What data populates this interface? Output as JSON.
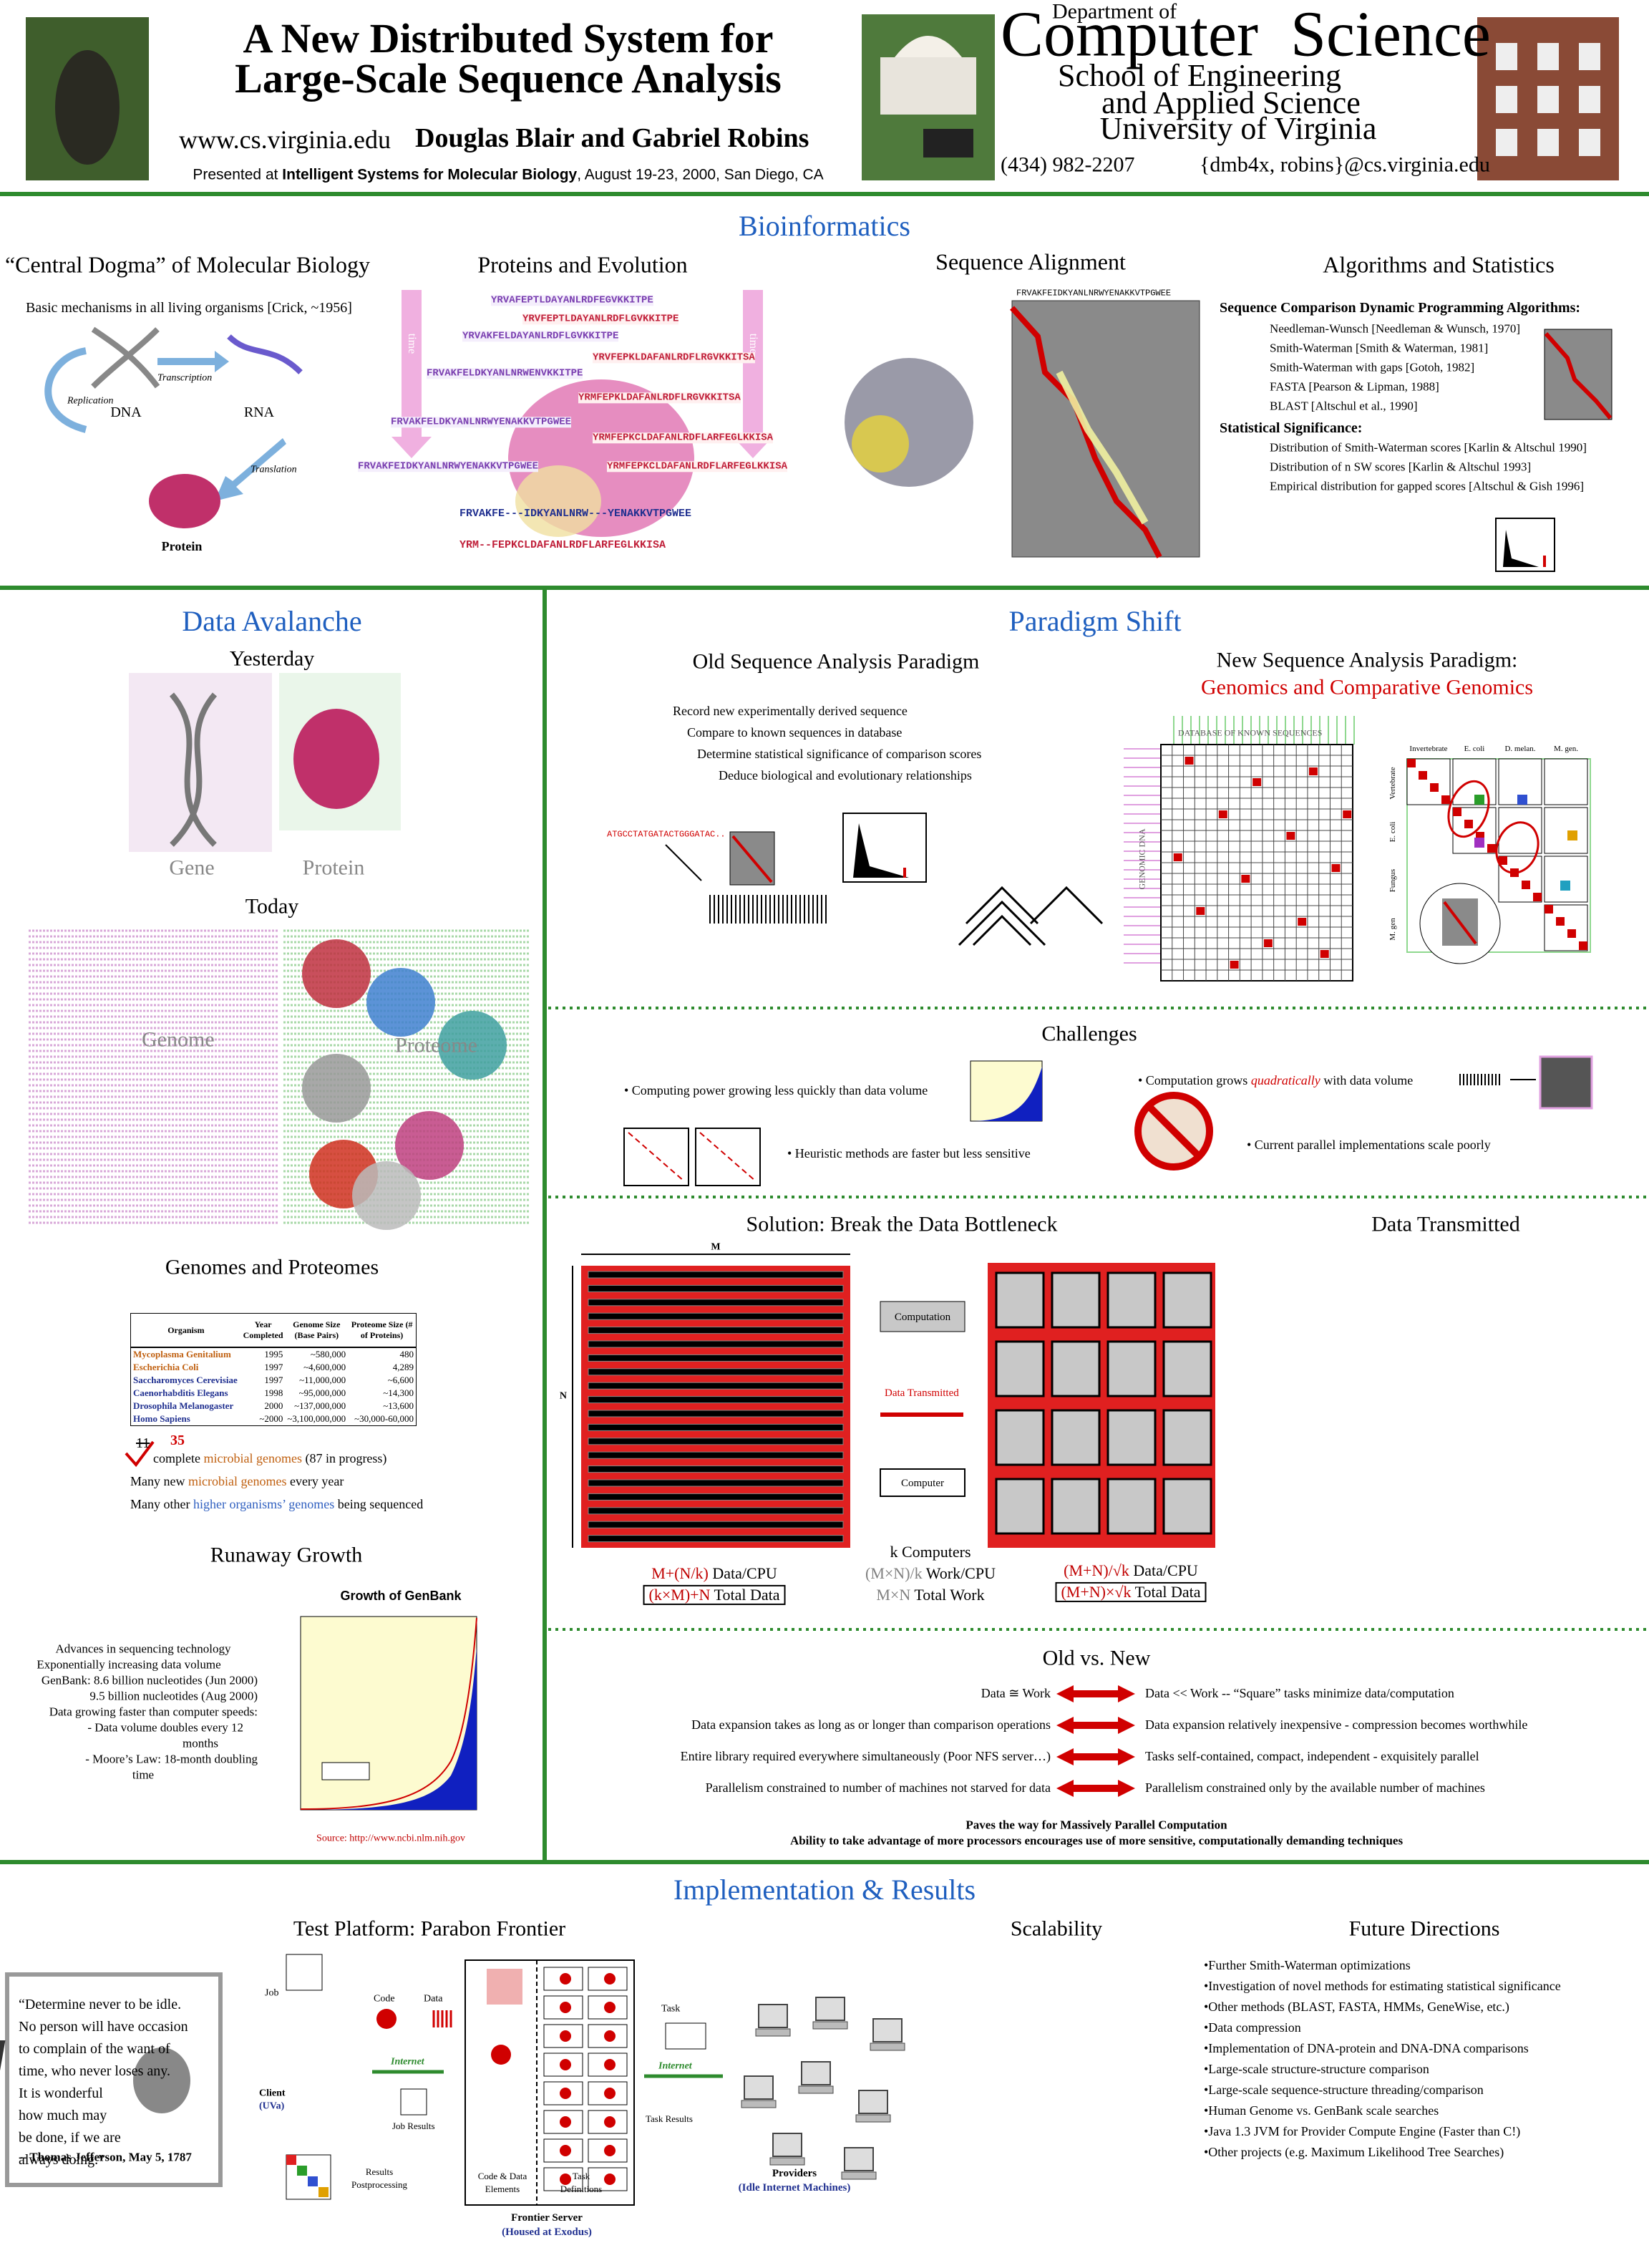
{
  "header": {
    "title": [
      "A New Distributed System for",
      "Large-Scale Sequence Analysis"
    ],
    "url": "www.cs.virginia.edu",
    "authors": "Douglas Blair and Gabriel Robins",
    "presented": {
      "prefix": "Presented at ",
      "venue": "Intelligent Systems for Molecular Biology",
      "suffix": ", August 19-23, 2000, San Diego, CA"
    },
    "department_of": "Department of",
    "department": "Computer  Science",
    "school": [
      "School of Engineering",
      "and Applied Science",
      "University of Virginia"
    ],
    "phone": "(434) 982-2207",
    "email": "{dmb4x, robins}@cs.virginia.edu"
  },
  "bioinformatics": {
    "heading": "Bioinformatics",
    "dogma": {
      "title": "“Central Dogma” of Molecular Biology",
      "subtitle": "Basic mechanisms in all living organisms [Crick, ~1956]",
      "dna": "DNA",
      "rna": "RNA",
      "protein": "Protein",
      "replication": "Replication",
      "transcription": "Transcription",
      "translation": "Translation"
    },
    "evolution": {
      "title": "Proteins and Evolution",
      "time": "time",
      "sequences": [
        "YRVAFEPTLDAYANLRDFEGVKKITPE",
        "YRVFEPTLDAYANLRDFLGVKKITPE",
        "YRVAKFELDAYANLRDFLGVKKITPE",
        "YRVFEPKLDAFANLRDFLRGVKKITSA",
        "FRVAKFELDKYANLNRWENVKKITPE",
        "YRMFEPKLDAFANLRDFLRGVKKITSA",
        "FRVAKFELDKYANLNRWYENAKKVTPGWEE",
        "YRMFEPKCLDAFANLRDFLARFEGLKKISA",
        "FRVAKFEIDKYANLNRWYENAKKVTPGWEE",
        "YRMFEPKCLDAFANLRDFLARFEGLKKISA"
      ],
      "alignment": [
        "FRVAKFE---IDKYANLNRW---YENAKKVTPGWEE",
        "YRM--FEPKCLDAFANLRDFLARFEGLKKISA"
      ]
    },
    "alignment": {
      "title": "Sequence Alignment",
      "top_sequence": "FRVAKFEIDKYANLNRWYENAKKVTPGWEE"
    },
    "algorithms": {
      "title": "Algorithms and Statistics",
      "dp_heading": "Sequence Comparison Dynamic Programming Algorithms:",
      "dp_items": [
        "Needleman-Wunsch [Needleman & Wunsch, 1970]",
        "Smith-Waterman [Smith & Waterman, 1981]",
        "Smith-Waterman with gaps [Gotoh, 1982]",
        "FASTA [Pearson & Lipman, 1988]",
        "BLAST [Altschul et al., 1990]"
      ],
      "stat_heading": "Statistical Significance:",
      "stat_items": [
        "Distribution of Smith-Waterman scores [Karlin & Altschul 1990]",
        "Distribution of n SW scores [Karlin & Altschul 1993]",
        "Empirical distribution for gapped scores [Altschul & Gish 1996]"
      ]
    }
  },
  "avalanche": {
    "heading": "Data Avalanche",
    "yesterday": "Yesterday",
    "gene": "Gene",
    "protein": "Protein",
    "today": "Today",
    "genome": "Genome",
    "proteome": "Proteome",
    "genomes_title": "Genomes and Proteomes",
    "table": {
      "headers": [
        "Organism",
        "Year Completed",
        "Genome Size (Base Pairs)",
        "Proteome Size (# of Proteins)"
      ],
      "rows": [
        [
          "Mycoplasma Genitalium",
          "1995",
          "~580,000",
          "480"
        ],
        [
          "Escherichia Coli",
          "1997",
          "~4,600,000",
          "4,289"
        ],
        [
          "Saccharomyces Cerevisiae",
          "1997",
          "~11,000,000",
          "~6,600"
        ],
        [
          "Caenorhabditis Elegans",
          "1998",
          "~95,000,000",
          "~14,300"
        ],
        [
          "Drosophila Melanogaster",
          "2000",
          "~137,000,000",
          "~13,600"
        ],
        [
          "Homo Sapiens",
          "~2000",
          "~3,100,000,000",
          "~30,000-60,000"
        ]
      ]
    },
    "notes": {
      "struck": "11",
      "revised": "35",
      "line1": [
        " complete ",
        "microbial genomes",
        " (87 in progress)"
      ],
      "line2": [
        "Many new ",
        "microbial genomes",
        " every year"
      ],
      "line3": [
        "Many other ",
        "higher organisms’ genomes",
        " being sequenced"
      ]
    },
    "runaway_title": "Runaway Growth",
    "runaway_items": [
      "Advances in sequencing technology",
      "Exponentially increasing data volume",
      "GenBank: 8.6 billion nucleotides (Jun 2000)",
      "9.5 billion nucleotides (Aug 2000)",
      "Data growing faster than computer speeds:",
      "- Data volume doubles every 12",
      "months",
      "- Moore’s Law: 18-month doubling",
      "time"
    ],
    "chart_title": "Growth of GenBank",
    "chart_source": "Source: http://www.ncbi.nlm.nih.gov"
  },
  "paradigm": {
    "heading": "Paradigm Shift",
    "old_title": "Old Sequence Analysis Paradigm",
    "old_steps": [
      "Record new experimentally derived sequence",
      "Compare to known sequences in database",
      "Determine statistical significance of comparison scores",
      "Deduce biological and evolutionary relationships"
    ],
    "old_sequence": "ATGCCTATGATACTGGGATAC..",
    "new_title": "New Sequence Analysis Paradigm:",
    "new_subtitle": "Genomics and Comparative Genomics",
    "database_label": "DATABASE OF KNOWN SEQUENCES",
    "genomic_label": "GENOMIC DNA",
    "matrix_top": [
      "Invertebrate",
      "E. coli",
      "D. melan.",
      "M. gen."
    ],
    "matrix_side": [
      "Vertebrate",
      "E. coli",
      "Fungus",
      "M. gen"
    ]
  },
  "challenges": {
    "heading": "Challenges",
    "item1": "• Computing power growing less quickly than data volume",
    "item2": "• Heuristic methods are faster but less sensitive",
    "item3": {
      "before": "• Computation grows ",
      "emphasis": "quadratically",
      "after": " with data volume"
    },
    "item4": "• Current parallel implementations scale poorly"
  },
  "solution": {
    "heading": "Solution: Break the Data Bottleneck",
    "right_heading": "Data Transmitted",
    "m": "M",
    "n": "N",
    "legend": {
      "computation": "Computation",
      "transmitted": "Data Transmitted",
      "computer": "Computer"
    },
    "left": [
      [
        {
          "text": "M+(N/k)",
          "color": "#c00000"
        },
        {
          "text": " Data/CPU",
          "color": "#000000"
        }
      ],
      [
        {
          "text": "(k×M)+N",
          "color": "#c00000"
        },
        {
          "text": " Total Data",
          "color": "#000000"
        }
      ]
    ],
    "middle": [
      [
        {
          "text": "k Computers",
          "color": "#000000"
        }
      ],
      [
        {
          "text": "(M×N)/k",
          "color": "#808080"
        },
        {
          "text": " Work/CPU",
          "color": "#000000"
        }
      ],
      [
        {
          "text": "M×N",
          "color": "#808080"
        },
        {
          "text": " Total Work",
          "color": "#000000"
        }
      ]
    ],
    "right": [
      [
        {
          "text": "(M+N)/√k",
          "color": "#c00000"
        },
        {
          "text": " Data/CPU",
          "color": "#000000"
        }
      ],
      [
        {
          "text": "(M+N)×√k",
          "color": "#c00000"
        },
        {
          "text": " Total Data",
          "color": "#000000"
        }
      ]
    ]
  },
  "old_new": {
    "heading": "Old vs. New",
    "rows": [
      [
        "Data ≅ Work",
        "Data << Work -- “Square” tasks minimize data/computation"
      ],
      [
        "Data expansion takes as long as or longer than comparison operations",
        "Data expansion relatively inexpensive - compression becomes worthwhile"
      ],
      [
        "Entire library required everywhere simultaneously (Poor NFS server…)",
        "Tasks self-contained, compact, independent - exquisitely parallel"
      ],
      [
        "Parallelism constrained to number of machines not starved for data",
        "Parallelism constrained only by the available number of machines"
      ]
    ],
    "footer": [
      "Paves the way for Massively Parallel Computation",
      "Ability to take advantage of more processors encourages use of more sensitive, computationally demanding techniques"
    ]
  },
  "implementation": {
    "heading": "Implementation & Results",
    "platform_title": "Test Platform: Parabon Frontier",
    "scalability_title": "Scalability",
    "future_title": "Future Directions",
    "quote": [
      "“Determine never to be idle.",
      "No person will have occasion",
      "to complain of the want of",
      "time, who never loses any.",
      "It is wonderful",
      "how much may",
      "be done, if we are",
      "always doing.”"
    ],
    "quote_author": "-- Thomas Jefferson, May 5, 1787",
    "diagram": {
      "job": "Job",
      "code": "Code",
      "data": "Data",
      "internet": "Internet",
      "client": "Client",
      "client_site": "(UVa)",
      "job_results": "Job Results",
      "results": "Results",
      "postprocessing": "Postprocessing",
      "code_data": [
        "Code & Data",
        "Elements"
      ],
      "task_defs": [
        "Task",
        "Definitions"
      ],
      "server": "Frontier Server",
      "server_site": "(Housed at Exodus)",
      "task": "Task",
      "task_results": "Task Results",
      "providers": "Providers",
      "providers_note": "(Idle Internet Machines)"
    },
    "future": [
      "•Further Smith-Waterman optimizations",
      "•Investigation of novel methods for estimating statistical significance",
      "•Other methods (BLAST, FASTA, HMMs, GeneWise, etc.)",
      "•Data compression",
      "•Implementation of DNA-protein and DNA-DNA comparisons",
      "•Large-scale structure-structure comparison",
      "•Large-scale sequence-structure threading/comparison",
      "•Human Genome vs. GenBank scale searches",
      "•Java 1.3 JVM for Provider Compute Engine (Faster than C!)",
      "•Other projects (e.g. Maximum Likelihood Tree Searches)"
    ]
  }
}
